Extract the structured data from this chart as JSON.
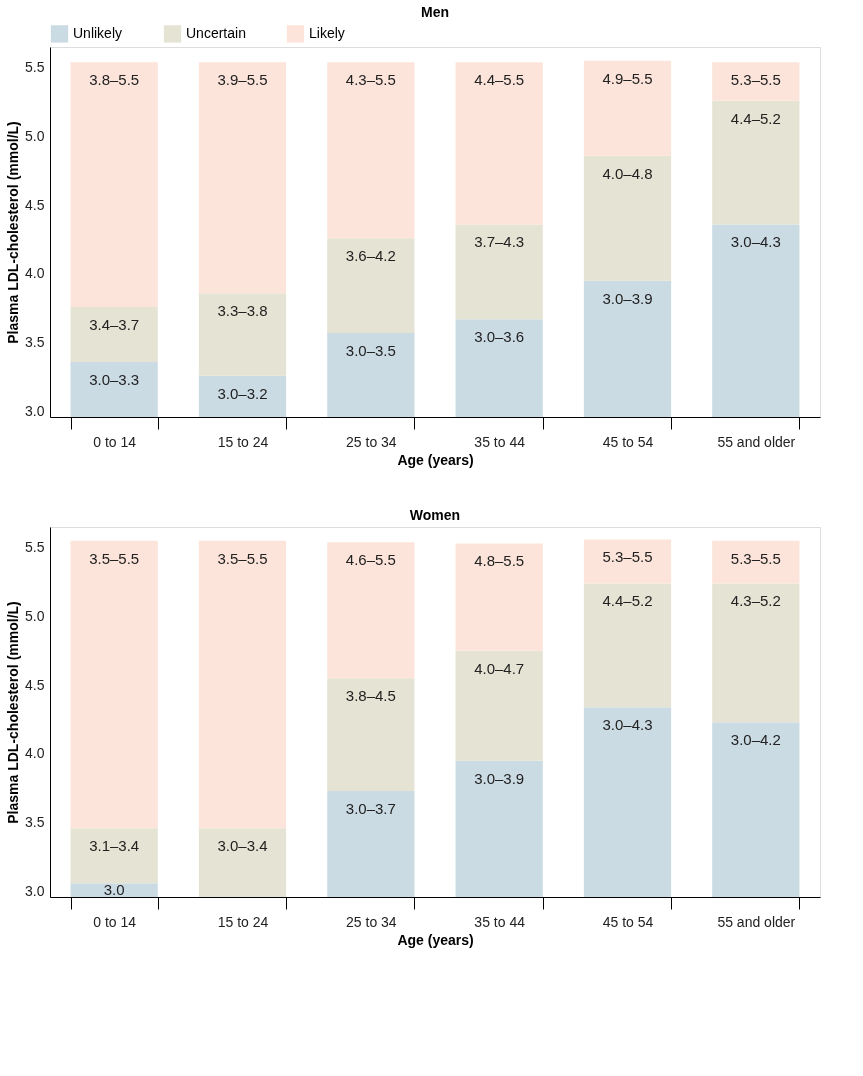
{
  "chart_data": [
    {
      "type": "bar",
      "title": "Men",
      "xlabel": "Age (years)",
      "ylabel": "Plasma LDL-cholesterol (mmol/L)",
      "legend": "top left",
      "categories": [
        "0 to 14",
        "15 to 24",
        "25 to 34",
        "35 to 44",
        "45 to 54",
        "55 and older"
      ],
      "ylim": [
        2.96,
        5.65
      ],
      "yticks": [
        {
          "value": 3,
          "label": "3.0"
        },
        3.5,
        {
          "value": 4,
          "label": "4.0"
        },
        4.5,
        {
          "value": 5,
          "label": "5.0"
        },
        5.5
      ],
      "series": [
        {
          "name": "Unlikely",
          "color": "#cbdbe4",
          "base": [
            2.96,
            2.96,
            2.96,
            2.96,
            2.96,
            2.96
          ],
          "values": [
            0.4,
            0.3,
            0.61,
            0.71,
            0.99,
            1.4
          ],
          "value_labels": [
            "3.0–3.3",
            "3.0–3.2",
            "3.0–3.5",
            "3.0–3.6",
            "3.0–3.9",
            "3.0–4.3"
          ]
        },
        {
          "name": "Uncertain",
          "color": "#e5e3d3",
          "base": [
            3.36,
            3.26,
            3.57,
            3.67,
            3.95,
            4.36
          ],
          "values": [
            0.4,
            0.6,
            0.69,
            0.69,
            0.91,
            0.9
          ],
          "value_labels": [
            "3.4–3.7",
            "3.3–3.8",
            "3.6–4.2",
            "3.7–4.3",
            "4.0–4.8",
            "4.4–5.2"
          ]
        },
        {
          "name": "Likely",
          "color": "#fce4da",
          "base": [
            3.76,
            3.86,
            4.26,
            4.36,
            4.86,
            5.26
          ],
          "values": [
            1.78,
            1.68,
            1.28,
            1.18,
            0.69,
            0.28
          ],
          "value_labels": [
            "3.8–5.5",
            "3.9–5.5",
            "4.3–5.5",
            "4.4–5.5",
            "4.9–5.5",
            "5.3–5.5"
          ]
        }
      ]
    },
    {
      "type": "bar",
      "title": "Women",
      "xlabel": "Age (years)",
      "ylabel": "Plasma LDL-cholesterol (mmol/L)",
      "annotations": [
        {
          "text": "3.0",
          "x": "0 to 14",
          "y": 3.06
        }
      ],
      "categories": [
        "0 to 14",
        "15 to 24",
        "25 to 34",
        "35 to 44",
        "45 to 54",
        "55 and older"
      ],
      "ylim": [
        2.96,
        5.65
      ],
      "yticks": [
        {
          "value": 3,
          "label": "3.0"
        },
        3.5,
        {
          "value": 4,
          "label": "4.0"
        },
        4.5,
        {
          "value": 5,
          "label": "5.0"
        },
        5.5
      ],
      "series": [
        {
          "color": "#cbdbe4",
          "base": [
            2.96,
            null,
            2.96,
            2.96,
            2.96,
            2.96
          ],
          "values": [
            0.1,
            null,
            0.77,
            0.99,
            1.38,
            1.27
          ],
          "value_labels": [
            null,
            null,
            "3.0–3.7",
            "3.0–3.9",
            "3.0–4.3",
            "3.0–4.2"
          ]
        },
        {
          "color": "#e5e3d3",
          "base": [
            3.06,
            2.96,
            3.73,
            3.95,
            4.34,
            4.23
          ],
          "values": [
            0.4,
            0.5,
            0.82,
            0.8,
            0.9,
            1.01
          ],
          "value_labels": [
            "3.1–3.4",
            "3.0–3.4",
            "3.8–4.5",
            "4.0–4.7",
            "4.4–5.2",
            "4.3–5.2"
          ]
        },
        {
          "color": "#fce4da",
          "base": [
            3.46,
            3.46,
            4.55,
            4.75,
            5.24,
            5.24
          ],
          "values": [
            2.09,
            2.09,
            0.99,
            0.78,
            0.32,
            0.31
          ],
          "value_labels": [
            "3.5–5.5",
            "3.5–5.5",
            "4.6–5.5",
            "4.8–5.5",
            "5.3–5.5",
            "5.3–5.5"
          ]
        }
      ]
    }
  ]
}
